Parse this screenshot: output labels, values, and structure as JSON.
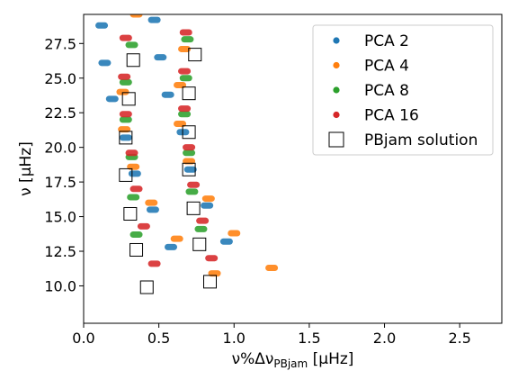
{
  "chart_data": {
    "type": "scatter",
    "xlabel": "ν%Δν",
    "xlabel_sub": "PBjam",
    "xlabel_unit": " [μHz]",
    "ylabel": "ν [μHz]",
    "xlim": [
      0.0,
      2.78
    ],
    "ylim": [
      7.3,
      29.6
    ],
    "xticks": [
      "0.0",
      "0.5",
      "1.0",
      "1.5",
      "2.0",
      "2.5"
    ],
    "yticks": [
      "10.0",
      "12.5",
      "15.0",
      "17.5",
      "20.0",
      "22.5",
      "25.0",
      "27.5"
    ],
    "grid": false,
    "legend_position": "upper right",
    "series": [
      {
        "name": "PCA 2",
        "marker": "dot",
        "color": "#1f77b4",
        "points": [
          [
            0.12,
            28.8
          ],
          [
            0.47,
            29.2
          ],
          [
            0.14,
            26.1
          ],
          [
            0.51,
            26.5
          ],
          [
            0.19,
            23.5
          ],
          [
            0.56,
            23.8
          ],
          [
            0.28,
            20.7
          ],
          [
            0.66,
            21.1
          ],
          [
            0.34,
            18.1
          ],
          [
            0.71,
            18.4
          ],
          [
            0.46,
            15.5
          ],
          [
            0.82,
            15.8
          ],
          [
            0.58,
            12.8
          ],
          [
            0.95,
            13.2
          ]
        ]
      },
      {
        "name": "PCA 4",
        "marker": "dot",
        "color": "#ff7f0e",
        "points": [
          [
            0.35,
            29.6
          ],
          [
            0.67,
            27.1
          ],
          [
            0.26,
            24.0
          ],
          [
            0.64,
            24.5
          ],
          [
            0.27,
            21.3
          ],
          [
            0.64,
            21.7
          ],
          [
            0.33,
            18.6
          ],
          [
            0.7,
            19.0
          ],
          [
            0.45,
            16.0
          ],
          [
            0.83,
            16.3
          ],
          [
            0.62,
            13.4
          ],
          [
            1.0,
            13.8
          ],
          [
            0.87,
            10.9
          ],
          [
            1.25,
            11.3
          ]
        ]
      },
      {
        "name": "PCA 8",
        "marker": "dot",
        "color": "#2ca02c",
        "points": [
          [
            0.32,
            27.4
          ],
          [
            0.69,
            27.8
          ],
          [
            0.28,
            24.7
          ],
          [
            0.68,
            25.0
          ],
          [
            0.28,
            22.0
          ],
          [
            0.67,
            22.4
          ],
          [
            0.32,
            19.3
          ],
          [
            0.7,
            19.6
          ],
          [
            0.33,
            16.4
          ],
          [
            0.72,
            16.8
          ],
          [
            0.35,
            13.7
          ],
          [
            0.78,
            14.1
          ]
        ]
      },
      {
        "name": "PCA 16",
        "marker": "dot",
        "color": "#d62728",
        "points": [
          [
            0.28,
            27.9
          ],
          [
            0.68,
            28.3
          ],
          [
            0.27,
            25.1
          ],
          [
            0.67,
            25.5
          ],
          [
            0.28,
            22.4
          ],
          [
            0.67,
            22.8
          ],
          [
            0.32,
            19.6
          ],
          [
            0.7,
            20.0
          ],
          [
            0.35,
            17.0
          ],
          [
            0.73,
            17.3
          ],
          [
            0.4,
            14.3
          ],
          [
            0.79,
            14.7
          ],
          [
            0.47,
            11.6
          ],
          [
            0.85,
            12.0
          ]
        ]
      },
      {
        "name": "PBjam solution",
        "marker": "open-square",
        "color": "#000000",
        "points": [
          [
            0.33,
            26.3
          ],
          [
            0.74,
            26.7
          ],
          [
            0.3,
            23.5
          ],
          [
            0.7,
            23.9
          ],
          [
            0.28,
            20.7
          ],
          [
            0.7,
            21.1
          ],
          [
            0.28,
            18.0
          ],
          [
            0.7,
            18.4
          ],
          [
            0.31,
            15.2
          ],
          [
            0.73,
            15.6
          ],
          [
            0.35,
            12.6
          ],
          [
            0.77,
            13.0
          ],
          [
            0.42,
            9.9
          ],
          [
            0.84,
            10.3
          ]
        ]
      }
    ]
  }
}
